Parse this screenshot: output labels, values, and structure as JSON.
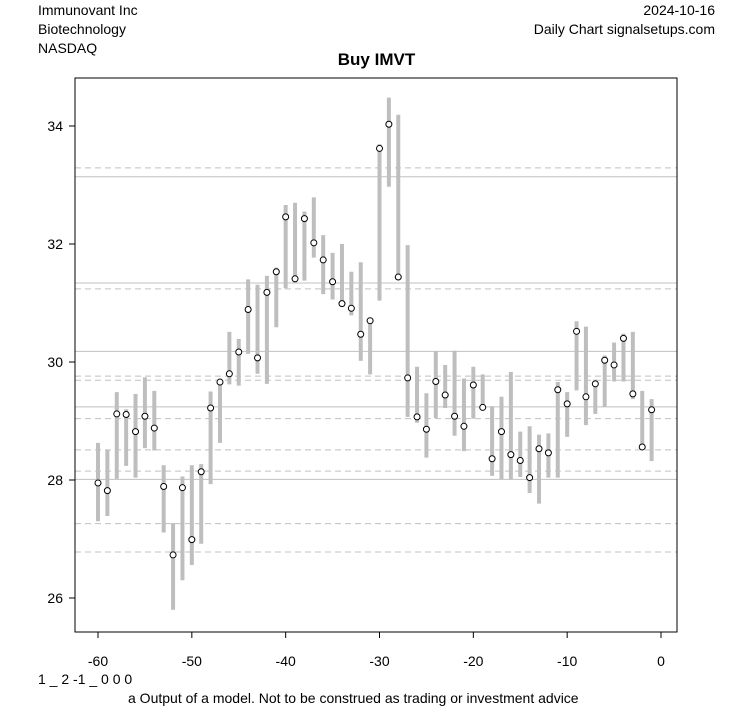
{
  "header": {
    "company": "Immunovant Inc",
    "sector": "Biotechnology",
    "exchange": "NASDAQ",
    "date": "2024-10-16",
    "source": "Daily Chart signalsetups.com"
  },
  "footer": {
    "code": "1 _ 2 -1 _ 0 0 0",
    "disclaimer": "a Output of a model. Not to be construed as trading or investment advice"
  },
  "chart_data": {
    "type": "scatter",
    "title": "Buy IMVT",
    "xlabel": "",
    "ylabel": "",
    "xlim": [
      -62.5,
      1.7
    ],
    "ylim": [
      25.5,
      35.4
    ],
    "x_ticks": [
      -60,
      -50,
      -40,
      -30,
      -20,
      -10,
      0
    ],
    "y_ticks": [
      26,
      28,
      30,
      32,
      34
    ],
    "grid": false,
    "colors": {
      "range": "#bebebe",
      "level": "#c0c0c0",
      "point": "#000000"
    },
    "solid_levels": [
      33.14,
      31.34,
      30.18,
      29.24,
      28.01
    ],
    "dashed_levels": [
      33.29,
      31.34,
      31.24,
      29.76,
      29.69,
      29.04,
      28.51,
      28.15,
      27.26,
      26.78
    ],
    "x": [
      -60,
      -59,
      -58,
      -57,
      -56,
      -55,
      -54,
      -53,
      -52,
      -51,
      -50,
      -49,
      -48,
      -47,
      -46,
      -45,
      -44,
      -43,
      -42,
      -41,
      -40,
      -39,
      -38,
      -37,
      -36,
      -35,
      -34,
      -33,
      -32,
      -31,
      -30,
      -29,
      -28,
      -27,
      -26,
      -25,
      -24,
      -23,
      -22,
      -21,
      -20,
      -19,
      -18,
      -17,
      -16,
      -15,
      -14,
      -13,
      -12,
      -11,
      -10,
      -9,
      -8,
      -7,
      -6,
      -5,
      -4,
      -3,
      -2,
      -1
    ],
    "close": [
      27.95,
      27.82,
      29.12,
      29.11,
      28.82,
      29.08,
      28.88,
      27.89,
      26.73,
      27.87,
      26.99,
      28.14,
      29.22,
      29.66,
      29.8,
      30.17,
      30.89,
      30.07,
      31.18,
      31.53,
      32.46,
      31.41,
      32.43,
      32.02,
      31.73,
      31.36,
      30.99,
      30.91,
      30.47,
      30.7,
      33.62,
      34.03,
      31.44,
      29.73,
      29.07,
      28.86,
      29.67,
      29.44,
      29.08,
      28.91,
      29.61,
      29.23,
      28.36,
      28.82,
      28.43,
      28.33,
      28.04,
      28.53,
      28.46,
      29.53,
      29.29,
      30.52,
      29.41,
      29.63,
      30.03,
      29.95,
      30.4,
      29.46,
      28.56,
      29.19
    ],
    "low": [
      27.3,
      27.39,
      28.02,
      28.24,
      28.04,
      28.54,
      28.5,
      27.11,
      25.8,
      26.3,
      26.56,
      26.92,
      27.93,
      28.63,
      29.62,
      29.6,
      30.14,
      29.8,
      29.63,
      30.59,
      31.25,
      31.33,
      31.38,
      31.77,
      31.15,
      31.06,
      30.95,
      30.79,
      30.02,
      29.79,
      31.04,
      32.97,
      31.44,
      29.07,
      28.97,
      28.38,
      29.05,
      29.22,
      28.75,
      28.49,
      29.04,
      29.23,
      28.07,
      28.01,
      28.01,
      28.05,
      27.78,
      27.6,
      28.04,
      28.04,
      28.73,
      29.52,
      28.93,
      29.12,
      29.24,
      29.67,
      29.67,
      29.37,
      28.56,
      28.32
    ],
    "high": [
      28.63,
      28.51,
      29.49,
      29.2,
      29.46,
      29.74,
      29.51,
      28.25,
      27.27,
      28.06,
      28.25,
      28.27,
      29.5,
      29.66,
      30.51,
      30.39,
      31.4,
      31.31,
      31.46,
      31.6,
      32.66,
      32.7,
      32.55,
      32.79,
      32.15,
      31.85,
      32.0,
      31.53,
      31.69,
      30.72,
      33.69,
      34.48,
      34.19,
      31.98,
      29.92,
      29.47,
      30.18,
      29.95,
      30.19,
      29.72,
      29.92,
      29.79,
      29.25,
      29.41,
      29.83,
      28.82,
      28.91,
      28.77,
      28.79,
      29.66,
      29.49,
      30.69,
      30.6,
      29.7,
      30.11,
      30.33,
      30.48,
      30.51,
      29.51,
      29.37
    ]
  }
}
